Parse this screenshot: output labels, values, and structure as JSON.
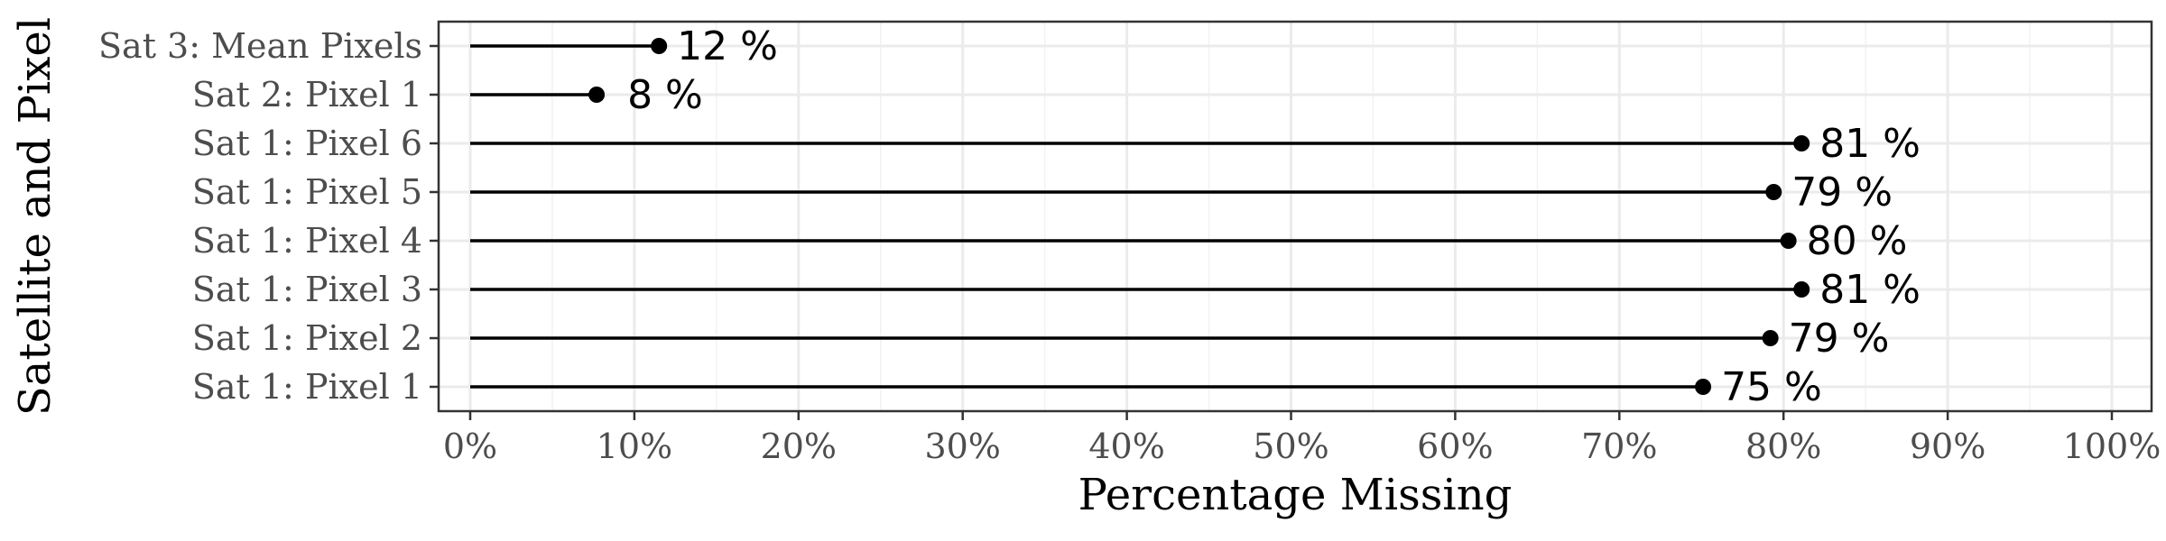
{
  "chart_data": {
    "type": "lollipop",
    "orientation": "horizontal",
    "xlabel": "Percentage Missing",
    "ylabel": "Satellite and Pixel",
    "xlim": [
      0,
      100
    ],
    "x_ticks": [
      0,
      10,
      20,
      30,
      40,
      50,
      60,
      70,
      80,
      90,
      100
    ],
    "x_tick_labels": [
      "0%",
      "10%",
      "20%",
      "30%",
      "40%",
      "50%",
      "60%",
      "70%",
      "80%",
      "90%",
      "100%"
    ],
    "grid": true,
    "categories": [
      "Sat 1: Pixel 1",
      "Sat 1: Pixel 2",
      "Sat 1: Pixel 3",
      "Sat 1: Pixel 4",
      "Sat 1: Pixel 5",
      "Sat 1: Pixel 6",
      "Sat 2: Pixel 1",
      "Sat 3: Mean Pixels"
    ],
    "values": [
      75.1,
      79.2,
      81.1,
      80.3,
      79.4,
      81.1,
      7.7,
      11.5
    ],
    "data_labels": [
      "75 %",
      "79 %",
      "81 %",
      "80 %",
      "79 %",
      "81 %",
      "8 %",
      "12 %"
    ],
    "colors": {
      "marks": "#000000",
      "tick_text": "#4d4d4d",
      "grid": "#ebebeb",
      "border": "#333333"
    }
  }
}
